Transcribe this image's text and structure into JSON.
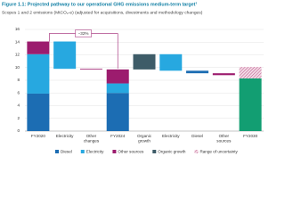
{
  "chart_data": {
    "type": "waterfall",
    "title": "Figure 1.1: Projected pathway to our operational GHG emissions medium-term target¹",
    "subtitle": "Scopes 1 and 2 emissions (MtCO₂-e) (adjusted for acquisitions, divestments and methodology changes)",
    "categories": [
      "FY2020",
      "Electricity",
      "Other changes",
      "FY2024",
      "Organic growth",
      "Electricity",
      "Diesel",
      "Other sources",
      "FY2030"
    ],
    "totals": [
      0,
      3,
      8
    ],
    "series": [
      {
        "name": "Diesel",
        "color": "#1c6db3",
        "values": [
          5.9,
          null,
          null,
          6.0,
          null,
          null,
          -0.4,
          null,
          null
        ]
      },
      {
        "name": "Electricity",
        "color": "#27a8e0",
        "values": [
          6.2,
          -4.3,
          null,
          1.5,
          null,
          -2.6,
          null,
          null,
          null
        ]
      },
      {
        "name": "Other sources",
        "color": "#9c1c6e",
        "values": [
          2.0,
          null,
          -0.1,
          2.2,
          null,
          null,
          null,
          -0.3,
          null
        ]
      },
      {
        "name": "Organic growth",
        "color": "#3e5c68",
        "values": [
          null,
          null,
          null,
          null,
          2.4,
          null,
          null,
          null,
          null
        ]
      },
      {
        "color": "#129e72",
        "values": [
          null,
          null,
          null,
          null,
          null,
          null,
          null,
          null,
          8.3
        ]
      },
      {
        "name": "Range of uncertainty",
        "color": "#d9a0bb",
        "hatch": true,
        "values": [
          null,
          null,
          null,
          null,
          null,
          null,
          null,
          null,
          1.8
        ]
      }
    ],
    "annotation": "−32%",
    "ylim": [
      0,
      16
    ],
    "yticks": [
      0,
      2,
      4,
      6,
      8,
      10,
      12,
      14,
      16
    ],
    "grid": true
  }
}
